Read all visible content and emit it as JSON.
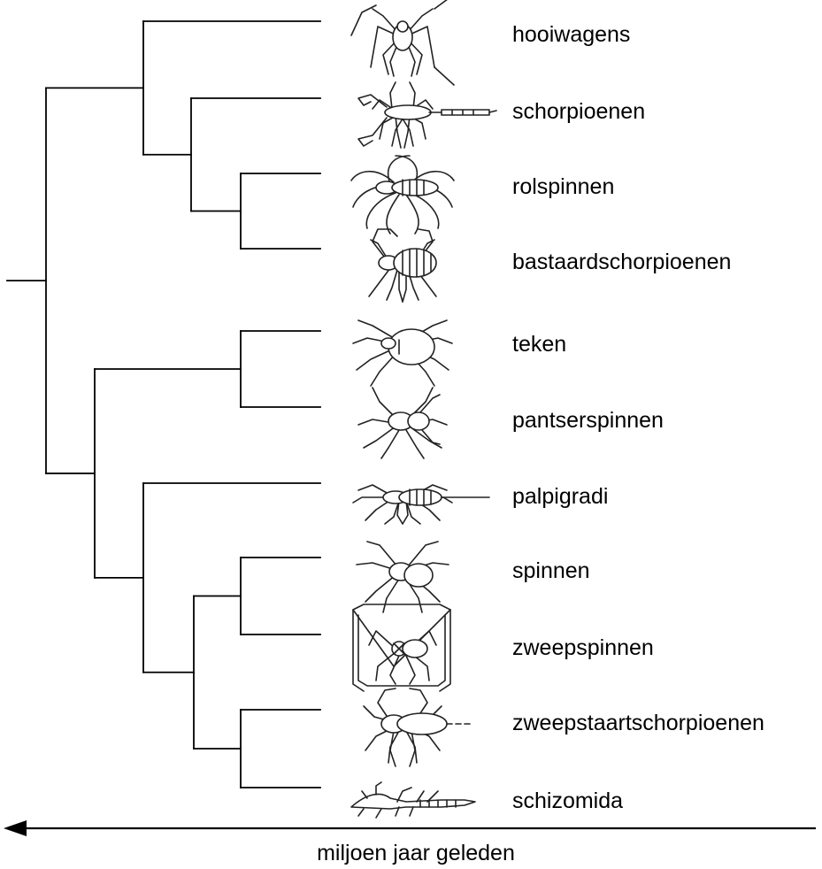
{
  "taxa": [
    {
      "label": "hooiwagens",
      "icon": "harvestman-icon"
    },
    {
      "label": "schorpioenen",
      "icon": "scorpion-icon"
    },
    {
      "label": "rolspinnen",
      "icon": "camel-spider-icon"
    },
    {
      "label": "bastaardschorpioenen",
      "icon": "pseudoscorpion-icon"
    },
    {
      "label": "teken",
      "icon": "tick-icon"
    },
    {
      "label": "pantserspinnen",
      "icon": "hooded-tickspider-icon"
    },
    {
      "label": "palpigradi",
      "icon": "microwhip-scorpion-icon"
    },
    {
      "label": "spinnen",
      "icon": "spider-icon"
    },
    {
      "label": "zweepspinnen",
      "icon": "whip-spider-icon"
    },
    {
      "label": "zweepstaartschorpioenen",
      "icon": "whip-scorpion-icon"
    },
    {
      "label": "schizomida",
      "icon": "schizomid-icon"
    }
  ],
  "tree": [
    [
      [
        0
      ],
      [
        [
          1
        ],
        [
          [
            2
          ],
          [
            3
          ]
        ]
      ]
    ],
    [
      [
        [
          4
        ],
        [
          5
        ]
      ],
      [
        [
          6
        ],
        [
          [
            [
              7
            ],
            [
              8
            ]
          ],
          [
            [
              9
            ],
            [
              10
            ]
          ]
        ]
      ]
    ]
  ],
  "time_axis": {
    "label": "miljoen jaar geleden",
    "direction": "left",
    "arrow-icon": "arrow-left-icon"
  },
  "colors": {
    "line": "#000000",
    "icon_stroke": "#222222"
  }
}
